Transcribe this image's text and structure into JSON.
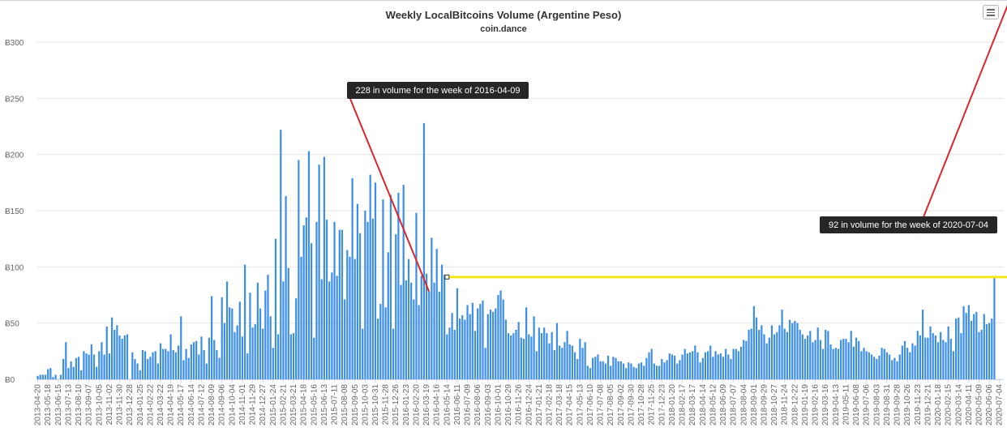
{
  "chart_data": {
    "type": "bar",
    "title": "Weekly LocalBitcoins Volume (Argentine Peso)",
    "subtitle": "coin.dance",
    "ylim": [
      0,
      300
    ],
    "y_ticks": [
      "Ƀ0",
      "Ƀ50",
      "Ƀ100",
      "Ƀ150",
      "Ƀ200",
      "Ƀ250",
      "Ƀ300"
    ],
    "grid": true,
    "x_tick_labels": [
      "2013-04-20",
      "2013-05-18",
      "2013-06-15",
      "2013-07-13",
      "2013-08-10",
      "2013-09-07",
      "2013-10-05",
      "2013-11-02",
      "2013-11-30",
      "2013-12-28",
      "2014-01-25",
      "2014-02-22",
      "2014-03-22",
      "2014-04-19",
      "2014-05-17",
      "2014-06-14",
      "2014-07-12",
      "2014-08-09",
      "2014-09-06",
      "2014-10-04",
      "2014-11-01",
      "2014-11-29",
      "2014-12-27",
      "2015-01-24",
      "2015-02-21",
      "2015-03-21",
      "2015-04-18",
      "2015-05-16",
      "2015-06-13",
      "2015-07-11",
      "2015-08-08",
      "2015-09-05",
      "2015-10-03",
      "2015-10-31",
      "2015-11-28",
      "2015-12-26",
      "2016-01-23",
      "2016-02-20",
      "2016-03-19",
      "2016-04-16",
      "2016-05-14",
      "2016-06-11",
      "2016-07-09",
      "2016-08-06",
      "2016-09-03",
      "2016-10-01",
      "2016-10-29",
      "2016-11-26",
      "2016-12-24",
      "2017-01-21",
      "2017-02-18",
      "2017-03-18",
      "2017-04-15",
      "2017-05-13",
      "2017-06-10",
      "2017-07-08",
      "2017-08-05",
      "2017-09-02",
      "2017-09-30",
      "2017-10-28",
      "2017-11-25",
      "2017-12-23",
      "2018-01-20",
      "2018-02-17",
      "2018-03-17",
      "2018-04-14",
      "2018-05-12",
      "2018-06-09",
      "2018-07-07",
      "2018-08-04",
      "2018-09-01",
      "2018-09-29",
      "2018-10-27",
      "2018-11-24",
      "2018-12-22",
      "2019-01-19",
      "2019-02-16",
      "2019-03-16",
      "2019-04-13",
      "2019-05-11",
      "2019-06-08",
      "2019-07-06",
      "2019-08-03",
      "2019-08-31",
      "2019-09-28",
      "2019-10-26",
      "2019-11-23",
      "2019-12-21",
      "2020-01-18",
      "2020-02-15",
      "2020-03-14",
      "2020-04-11",
      "2020-05-09",
      "2020-06-06",
      "2020-07-04"
    ],
    "values": [
      3,
      4,
      4,
      4,
      9,
      10,
      2,
      4,
      0,
      4,
      18,
      33,
      10,
      16,
      11,
      19,
      20,
      8,
      25,
      23,
      22,
      31,
      22,
      11,
      25,
      33,
      22,
      47,
      23,
      55,
      44,
      48,
      39,
      36,
      39,
      40,
      0,
      24,
      18,
      14,
      8,
      26,
      25,
      18,
      20,
      24,
      25,
      14,
      32,
      27,
      27,
      25,
      40,
      26,
      24,
      30,
      56,
      17,
      27,
      19,
      31,
      33,
      34,
      22,
      38,
      26,
      14,
      37,
      74,
      35,
      26,
      19,
      73,
      50,
      87,
      64,
      63,
      42,
      48,
      69,
      38,
      102,
      23,
      77,
      46,
      49,
      86,
      63,
      45,
      79,
      93,
      56,
      28,
      125,
      40,
      222,
      87,
      163,
      99,
      40,
      41,
      72,
      195,
      109,
      137,
      144,
      203,
      121,
      37,
      140,
      191,
      89,
      198,
      142,
      87,
      95,
      140,
      92,
      133,
      133,
      71,
      115,
      109,
      179,
      107,
      156,
      130,
      45,
      150,
      140,
      182,
      143,
      175,
      54,
      67,
      160,
      64,
      113,
      164,
      45,
      129,
      166,
      84,
      173,
      88,
      107,
      86,
      71,
      148,
      66,
      92,
      228,
      94,
      78,
      126,
      86,
      116,
      78,
      102,
      93,
      40,
      46,
      59,
      44,
      81,
      54,
      57,
      53,
      66,
      58,
      68,
      43,
      63,
      67,
      70,
      28,
      58,
      62,
      60,
      63,
      75,
      79,
      71,
      53,
      41,
      39,
      41,
      44,
      51,
      37,
      36,
      64,
      40,
      38,
      56,
      25,
      46,
      41,
      46,
      41,
      32,
      42,
      26,
      50,
      30,
      28,
      33,
      43,
      31,
      30,
      24,
      18,
      36,
      28,
      33,
      12,
      10,
      19,
      20,
      22,
      16,
      16,
      14,
      21,
      12,
      20,
      19,
      16,
      16,
      14,
      10,
      15,
      14,
      11,
      10,
      14,
      15,
      12,
      19,
      24,
      27,
      14,
      12,
      12,
      18,
      15,
      17,
      23,
      22,
      21,
      14,
      17,
      22,
      27,
      23,
      24,
      25,
      30,
      24,
      15,
      19,
      24,
      25,
      30,
      20,
      25,
      22,
      23,
      20,
      27,
      22,
      18,
      27,
      27,
      25,
      29,
      35,
      34,
      44,
      45,
      65,
      55,
      44,
      48,
      40,
      32,
      37,
      48,
      40,
      42,
      48,
      62,
      45,
      42,
      53,
      50,
      52,
      50,
      44,
      40,
      36,
      39,
      43,
      33,
      35,
      46,
      35,
      27,
      44,
      43,
      31,
      27,
      28,
      27,
      35,
      36,
      36,
      33,
      43,
      29,
      37,
      34,
      25,
      28,
      25,
      24,
      22,
      20,
      18,
      21,
      28,
      27,
      24,
      22,
      17,
      19,
      16,
      22,
      30,
      34,
      28,
      24,
      32,
      30,
      43,
      39,
      62,
      37,
      37,
      47,
      41,
      39,
      33,
      42,
      35,
      33,
      47,
      36,
      25,
      54,
      55,
      41,
      65,
      59,
      66,
      52,
      58,
      60,
      42,
      44,
      58,
      49,
      50,
      54,
      92
    ],
    "annotations": [
      {
        "text": "228 in volume for the week of 2016-04-09",
        "bar_index": 153
      },
      {
        "text": "92 in volume for the week of 2020-07-04",
        "bar_index": 380
      }
    ],
    "reference_line": {
      "value": 91,
      "from_bar_index": 160,
      "color": "#f7e51c"
    },
    "bar_color": "#3d8ee8",
    "annotation_line_color": "#d9262a",
    "menu_icon": "hamburger-menu-icon"
  }
}
